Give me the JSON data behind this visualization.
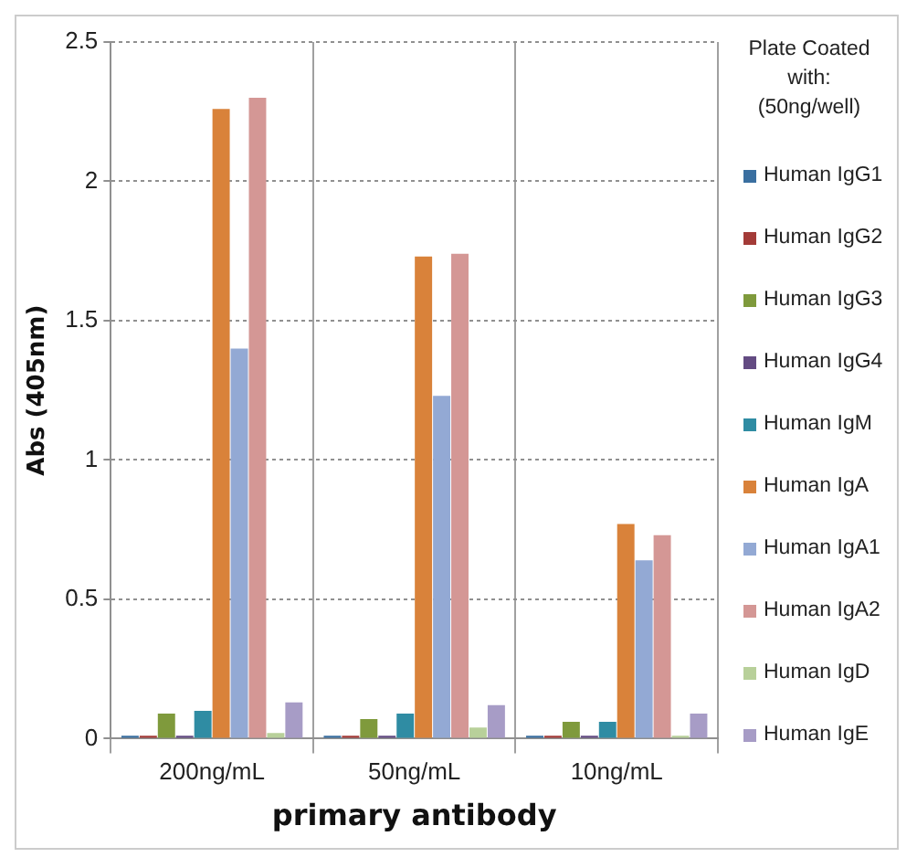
{
  "chart_data": {
    "type": "bar",
    "xlabel": "primary antibody",
    "ylabel": "Abs (405nm)",
    "legend_title": "Plate Coated with:\n(50ng/well)",
    "categories": [
      "200ng/mL",
      "50ng/mL",
      "10ng/mL"
    ],
    "ylim": [
      0,
      2.5
    ],
    "yticks": [
      0,
      0.5,
      1,
      1.5,
      2,
      2.5
    ],
    "grid": true,
    "legend": "right",
    "series": [
      {
        "name": "Human IgG1",
        "color": "#3a6fa0",
        "values": [
          0.01,
          0.01,
          0.01
        ]
      },
      {
        "name": "Human IgG2",
        "color": "#a33b38",
        "values": [
          0.01,
          0.01,
          0.01
        ]
      },
      {
        "name": "Human IgG3",
        "color": "#7f9a3c",
        "values": [
          0.09,
          0.07,
          0.06
        ]
      },
      {
        "name": "Human IgG4",
        "color": "#634b82",
        "values": [
          0.01,
          0.01,
          0.01
        ]
      },
      {
        "name": "Human IgM",
        "color": "#2f8ca3",
        "values": [
          0.1,
          0.09,
          0.06
        ]
      },
      {
        "name": "Human IgA",
        "color": "#d9823a",
        "values": [
          2.26,
          1.73,
          0.77
        ]
      },
      {
        "name": "Human IgA1",
        "color": "#93a9d4",
        "values": [
          1.4,
          1.23,
          0.64
        ]
      },
      {
        "name": "Human IgA2",
        "color": "#d49795",
        "values": [
          2.3,
          1.74,
          0.73
        ]
      },
      {
        "name": "Human IgD",
        "color": "#b8d09a",
        "values": [
          0.02,
          0.04,
          0.01
        ]
      },
      {
        "name": "Human IgE",
        "color": "#a79cc6",
        "values": [
          0.13,
          0.12,
          0.09
        ]
      }
    ]
  }
}
